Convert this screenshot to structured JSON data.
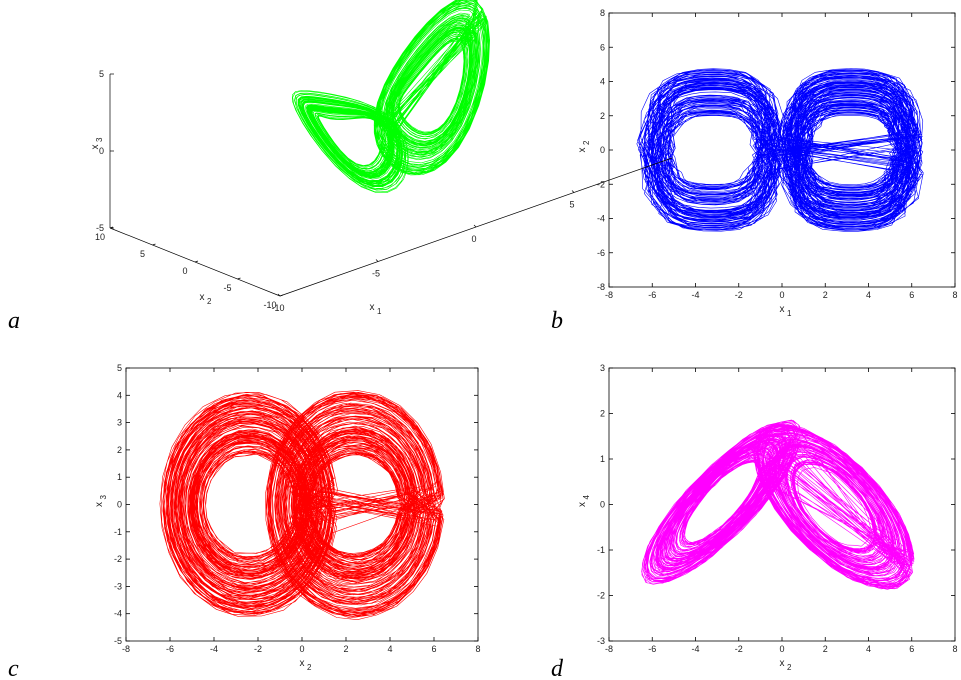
{
  "chart_data": [
    {
      "id": "a",
      "type": "scatter",
      "dimensions": 3,
      "panel_label": "a",
      "xlabel": "x",
      "xlabel_sub": "1",
      "ylabel": "x",
      "ylabel_sub": "2",
      "zlabel": "x",
      "zlabel_sub": "3",
      "x_ticks": [
        "-10",
        "-5",
        "0",
        "5"
      ],
      "y_ticks": [
        "-10",
        "-5",
        "0",
        "5",
        "10"
      ],
      "z_ticks": [
        "-5",
        "0",
        "5"
      ],
      "xlim": [
        -10,
        10
      ],
      "ylim": [
        -10,
        10
      ],
      "zlim": [
        -5,
        5
      ],
      "color": "#00ff00"
    },
    {
      "id": "b",
      "type": "line",
      "panel_label": "b",
      "xlabel": "x",
      "xlabel_sub": "1",
      "ylabel": "x",
      "ylabel_sub": "2",
      "xlim": [
        -8,
        8
      ],
      "ylim": [
        -8,
        8
      ],
      "x_ticks": [
        "-8",
        "-6",
        "-4",
        "-2",
        "0",
        "2",
        "4",
        "6",
        "8"
      ],
      "y_ticks": [
        "-8",
        "-6",
        "-4",
        "-2",
        "0",
        "2",
        "4",
        "6",
        "8"
      ],
      "color": "#0000ff"
    },
    {
      "id": "c",
      "type": "line",
      "panel_label": "c",
      "xlabel": "x",
      "xlabel_sub": "2",
      "ylabel": "x",
      "ylabel_sub": "3",
      "xlim": [
        -8,
        8
      ],
      "ylim": [
        -5,
        5
      ],
      "x_ticks": [
        "-8",
        "-6",
        "-4",
        "-2",
        "0",
        "2",
        "4",
        "6",
        "8"
      ],
      "y_ticks": [
        "-5",
        "-4",
        "-3",
        "-2",
        "-1",
        "0",
        "1",
        "2",
        "3",
        "4",
        "5"
      ],
      "color": "#ff0000"
    },
    {
      "id": "d",
      "type": "line",
      "panel_label": "d",
      "xlabel": "x",
      "xlabel_sub": "2",
      "ylabel": "x",
      "ylabel_sub": "4",
      "xlim": [
        -8,
        8
      ],
      "ylim": [
        -3,
        3
      ],
      "x_ticks": [
        "-8",
        "-6",
        "-4",
        "-2",
        "0",
        "2",
        "4",
        "6",
        "8"
      ],
      "y_ticks": [
        "-3",
        "-2",
        "-1",
        "0",
        "1",
        "2",
        "3"
      ],
      "color": "#ff00ff"
    }
  ]
}
